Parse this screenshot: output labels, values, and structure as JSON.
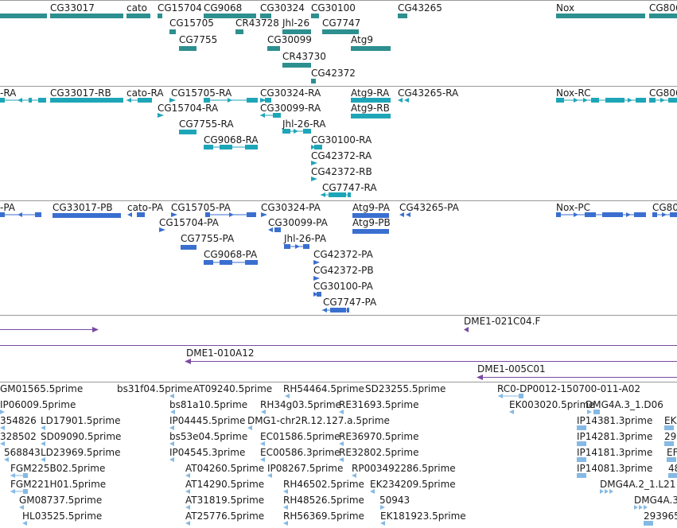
{
  "colors": {
    "gene": "#2d8f8f",
    "transcript": "#1ea6b8",
    "polypeptide": "#3a6fd0",
    "clone": "#7a4aa0",
    "est": "#86b9e3"
  },
  "gene_track": {
    "labels": [
      "CG33017",
      "cato",
      "CG15704",
      "CG9068",
      "CG30324",
      "CG30100",
      "CG43265",
      "Nox",
      "CG806",
      "CG15705",
      "CR43728",
      "Jhl-26",
      "CG7747",
      "CG7755",
      "CG30099",
      "Atg9",
      "CR43730",
      "CG42372"
    ]
  },
  "transcript_track": {
    "labels": [
      "-RA",
      "CG33017-RB",
      "cato-RA",
      "CG15705-RA",
      "CG30324-RA",
      "Atg9-RA",
      "CG43265-RA",
      "Nox-RC",
      "CG806",
      "CG15704-RA",
      "CG30099-RA",
      "Atg9-RB",
      "CG7755-RA",
      "Jhl-26-RA",
      "CG9068-RA",
      "CG30100-RA",
      "CG42372-RA",
      "CG42372-RB",
      "CG7747-RA"
    ]
  },
  "polypeptide_track": {
    "labels": [
      "-PA",
      "CG33017-PB",
      "cato-PA",
      "CG15705-PA",
      "CG30324-PA",
      "Atg9-PA",
      "CG43265-PA",
      "Nox-PC",
      "CG80",
      "CG15704-PA",
      "CG30099-PA",
      "Atg9-PB",
      "CG7755-PA",
      "Jhl-26-PA",
      "CG9068-PA",
      "CG42372-PA",
      "CG42372-PB",
      "CG30100-PA",
      "CG7747-PA"
    ]
  },
  "clone_track": {
    "labels": [
      "DME1-021C04.F",
      "DME1-010A12",
      "DME1-005C01"
    ]
  },
  "est_track": {
    "labels": [
      "GM01565.5prime",
      "bs31f04.5prime",
      "AT09240.5prime",
      "RH54464.5prime",
      "SD23255.5prime",
      "RC0-DP0012-150700-011-A02",
      "IP06009.5prime",
      "bs81a10.5prime",
      "RH34g03.5prime",
      "RE31693.5prime",
      "EK003020.5prime",
      "DMG4A.3_1.D06",
      "354826",
      "LD17901.5prime",
      "IP04445.5prime",
      "DMG1-chr2R.12.127.a.5prime",
      "IP14381.3prime",
      "EK",
      "328502",
      "SD09090.5prime",
      "bs53e04.5prime",
      "EC01586.5prime",
      "RE36970.5prime",
      "IP14281.3prime",
      "29",
      "568843",
      "LD23969.5prime",
      "IP04545.3prime",
      "EC00586.3prime",
      "RE32802.5prime",
      "IP14181.3prime",
      "EF",
      "FGM225B02.5prime",
      "AT04260.5prime",
      "IP08267.5prime",
      "RP003492286.5prime",
      "IP14081.3prime",
      "48",
      "FGM221H01.5prime",
      "AT14290.5prime",
      "RH46502.5prime",
      "EK234209.5prime",
      "DMG4A.2_1.L21",
      "GM08737.5prime",
      "AT31819.5prime",
      "RH48526.5prime",
      "50943",
      "DMG4A.3",
      "HL03525.5prime",
      "AT25776.5prime",
      "RH56369.5prime",
      "EK181923.5prime",
      "293965"
    ]
  }
}
